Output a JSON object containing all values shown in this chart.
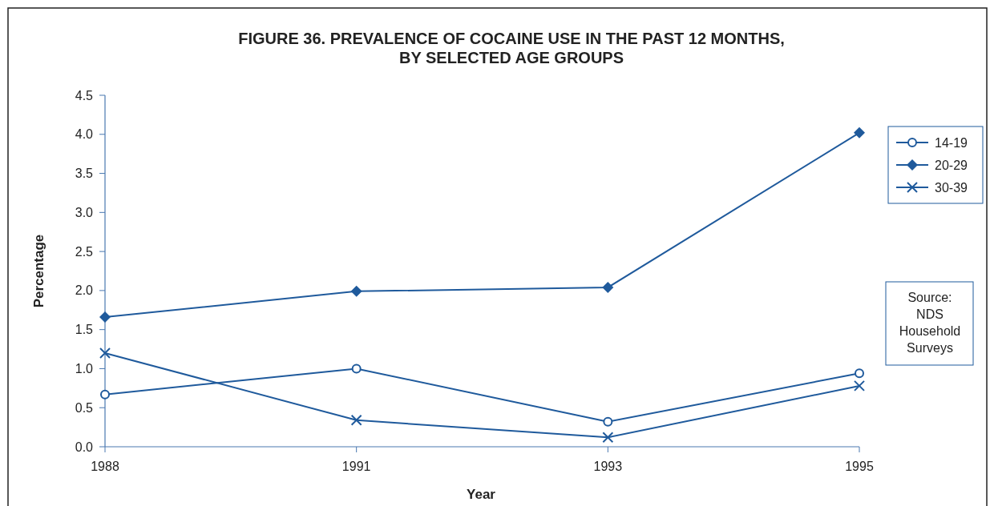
{
  "chart_data": {
    "type": "line",
    "title": "FIGURE 36. PREVALENCE OF COCAINE USE IN THE PAST 12 MONTHS,\nBY SELECTED AGE GROUPS",
    "xlabel": "Year",
    "ylabel": "Percentage",
    "categories": [
      "1988",
      "1991",
      "1993",
      "1995"
    ],
    "series": [
      {
        "name": "14-19",
        "color": "#1f5a9c",
        "marker": "circle",
        "values": [
          0.67,
          1.0,
          0.32,
          0.94
        ]
      },
      {
        "name": "20-29",
        "color": "#1f5a9c",
        "marker": "diamond",
        "values": [
          1.66,
          1.99,
          2.04,
          4.02
        ]
      },
      {
        "name": "30-39",
        "color": "#1f5a9c",
        "marker": "cross",
        "values": [
          1.2,
          0.34,
          0.12,
          0.78
        ]
      }
    ],
    "ylim": [
      0,
      4.5
    ],
    "yticks": [
      {
        "value": 0,
        "label": "0.0"
      },
      {
        "value": 0.5,
        "label": "0.5"
      },
      {
        "value": 1,
        "label": "1.0"
      },
      {
        "value": 1.5,
        "label": "1.5"
      },
      {
        "value": 2,
        "label": "2.0"
      },
      {
        "value": 2.5,
        "label": "2.5"
      },
      {
        "value": 3,
        "label": "3.0"
      },
      {
        "value": 3.5,
        "label": "3.5"
      },
      {
        "value": 4,
        "label": "4.0"
      },
      {
        "value": 4.5,
        "label": "4.5"
      }
    ],
    "grid": false,
    "legend": "right",
    "line_style": "solid",
    "annotations": [
      "Source:\nNDS\nHousehold\nSurveys"
    ]
  }
}
